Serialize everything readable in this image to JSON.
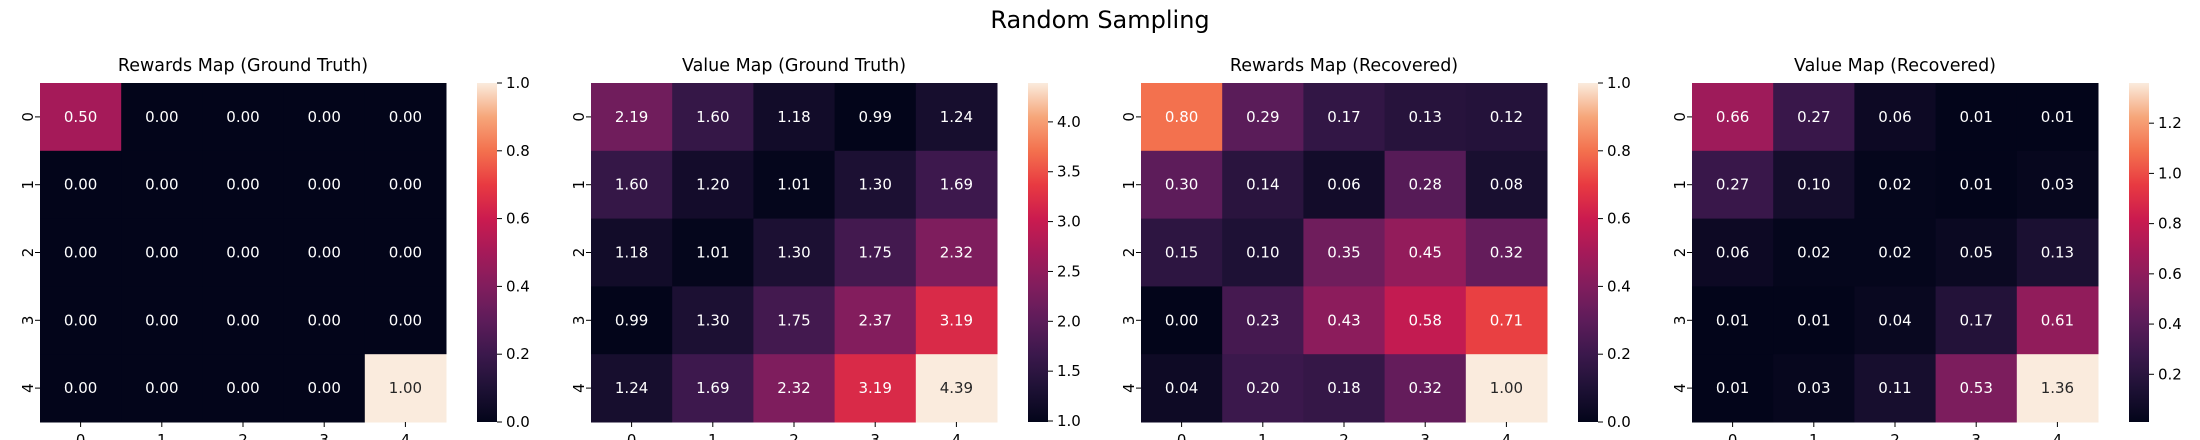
{
  "suptitle": "Random Sampling",
  "chart_data": [
    {
      "type": "heatmap",
      "title": "Rewards Map (Ground Truth)",
      "x_ticks": [
        "0",
        "1",
        "2",
        "3",
        "4"
      ],
      "y_ticks": [
        "0",
        "1",
        "2",
        "3",
        "4"
      ],
      "vmin": 0.0,
      "vmax": 1.0,
      "colorbar_ticks": [
        0.0,
        0.2,
        0.4,
        0.6,
        0.8,
        1.0
      ],
      "colorbar_labels": [
        "0.0",
        "0.2",
        "0.4",
        "0.6",
        "0.8",
        "1.0"
      ],
      "values": [
        [
          0.5,
          0.0,
          0.0,
          0.0,
          0.0
        ],
        [
          0.0,
          0.0,
          0.0,
          0.0,
          0.0
        ],
        [
          0.0,
          0.0,
          0.0,
          0.0,
          0.0
        ],
        [
          0.0,
          0.0,
          0.0,
          0.0,
          0.0
        ],
        [
          0.0,
          0.0,
          0.0,
          0.0,
          1.0
        ]
      ]
    },
    {
      "type": "heatmap",
      "title": "Value Map (Ground Truth)",
      "x_ticks": [
        "0",
        "1",
        "2",
        "3",
        "4"
      ],
      "y_ticks": [
        "0",
        "1",
        "2",
        "3",
        "4"
      ],
      "vmin": 0.99,
      "vmax": 4.39,
      "colorbar_ticks": [
        1.0,
        1.5,
        2.0,
        2.5,
        3.0,
        3.5,
        4.0
      ],
      "colorbar_labels": [
        "1.0",
        "1.5",
        "2.0",
        "2.5",
        "3.0",
        "3.5",
        "4.0"
      ],
      "values": [
        [
          2.19,
          1.6,
          1.18,
          0.99,
          1.24
        ],
        [
          1.6,
          1.2,
          1.01,
          1.3,
          1.69
        ],
        [
          1.18,
          1.01,
          1.3,
          1.75,
          2.32
        ],
        [
          0.99,
          1.3,
          1.75,
          2.37,
          3.19
        ],
        [
          1.24,
          1.69,
          2.32,
          3.19,
          4.39
        ]
      ]
    },
    {
      "type": "heatmap",
      "title": "Rewards Map (Recovered)",
      "x_ticks": [
        "0",
        "1",
        "2",
        "3",
        "4"
      ],
      "y_ticks": [
        "0",
        "1",
        "2",
        "3",
        "4"
      ],
      "vmin": 0.0,
      "vmax": 1.0,
      "colorbar_ticks": [
        0.0,
        0.2,
        0.4,
        0.6,
        0.8,
        1.0
      ],
      "colorbar_labels": [
        "0.0",
        "0.2",
        "0.4",
        "0.6",
        "0.8",
        "1.0"
      ],
      "values": [
        [
          0.8,
          0.29,
          0.17,
          0.13,
          0.12
        ],
        [
          0.3,
          0.14,
          0.06,
          0.28,
          0.08
        ],
        [
          0.15,
          0.1,
          0.35,
          0.45,
          0.32
        ],
        [
          0.0,
          0.23,
          0.43,
          0.58,
          0.71
        ],
        [
          0.04,
          0.2,
          0.18,
          0.32,
          1.0
        ]
      ]
    },
    {
      "type": "heatmap",
      "title": "Value Map (Recovered)",
      "x_ticks": [
        "0",
        "1",
        "2",
        "3",
        "4"
      ],
      "y_ticks": [
        "0",
        "1",
        "2",
        "3",
        "4"
      ],
      "vmin": 0.01,
      "vmax": 1.36,
      "colorbar_ticks": [
        0.2,
        0.4,
        0.6,
        0.8,
        1.0,
        1.2
      ],
      "colorbar_labels": [
        "0.2",
        "0.4",
        "0.6",
        "0.8",
        "1.0",
        "1.2"
      ],
      "values": [
        [
          0.66,
          0.27,
          0.06,
          0.01,
          0.01
        ],
        [
          0.27,
          0.1,
          0.02,
          0.01,
          0.03
        ],
        [
          0.06,
          0.02,
          0.02,
          0.05,
          0.13
        ],
        [
          0.01,
          0.01,
          0.04,
          0.17,
          0.61
        ],
        [
          0.01,
          0.03,
          0.11,
          0.53,
          1.36
        ]
      ]
    }
  ]
}
